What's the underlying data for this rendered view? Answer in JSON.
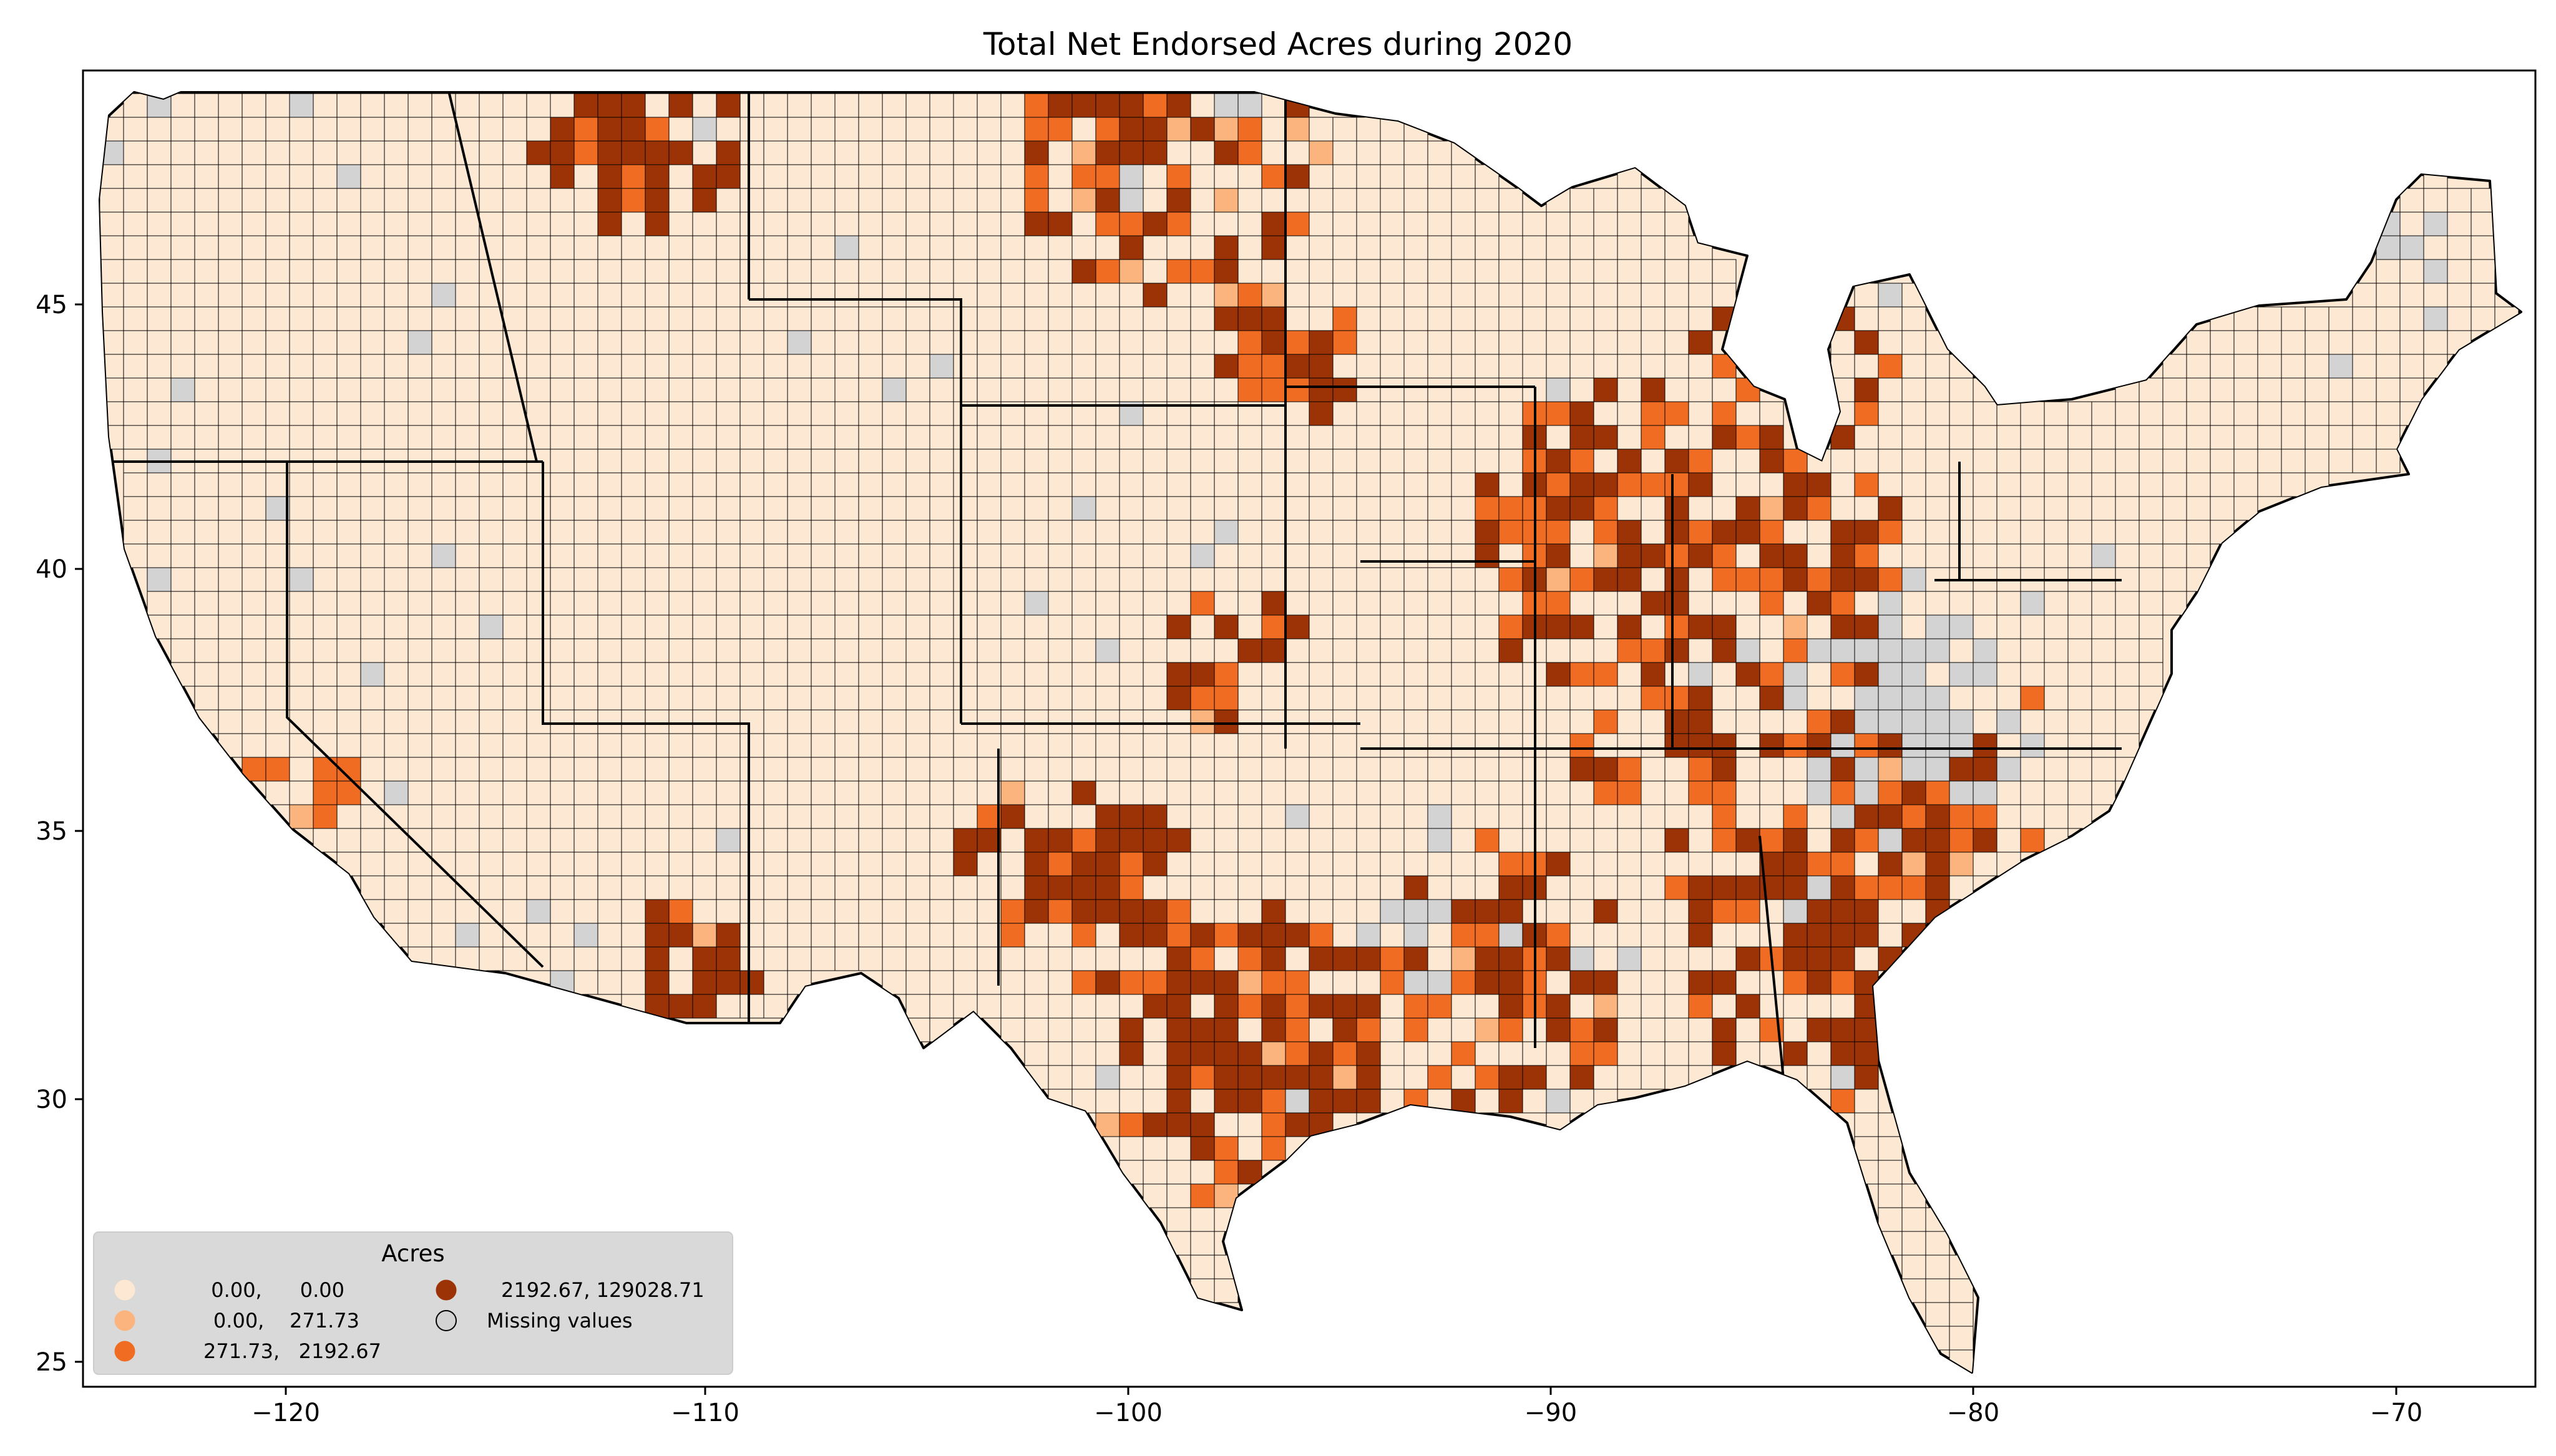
{
  "title": "Total Net Endorsed Acres during 2020",
  "axes": {
    "x_ticks": [
      "−120",
      "−110",
      "−100",
      "−90",
      "−80",
      "−70"
    ],
    "y_ticks": [
      "25",
      "30",
      "35",
      "40",
      "45"
    ]
  },
  "legend": {
    "title": "Acres",
    "items": [
      {
        "label": "0.00,      0.00",
        "color": "#fde8d4"
      },
      {
        "label": "0.00,    271.73",
        "color": "#fbb47e"
      },
      {
        "label": "271.73,   2192.67",
        "color": "#f06c23"
      },
      {
        "label": "2192.67, 129028.71",
        "color": "#9b3306"
      },
      {
        "label": "Missing values",
        "color": "#d3d3d3"
      }
    ]
  },
  "colors": {
    "class0": "#fde8d4",
    "class1": "#fbb47e",
    "class2": "#f06c23",
    "class3": "#9b3306",
    "missing": "#d3d3d3",
    "border": "#000000"
  }
}
